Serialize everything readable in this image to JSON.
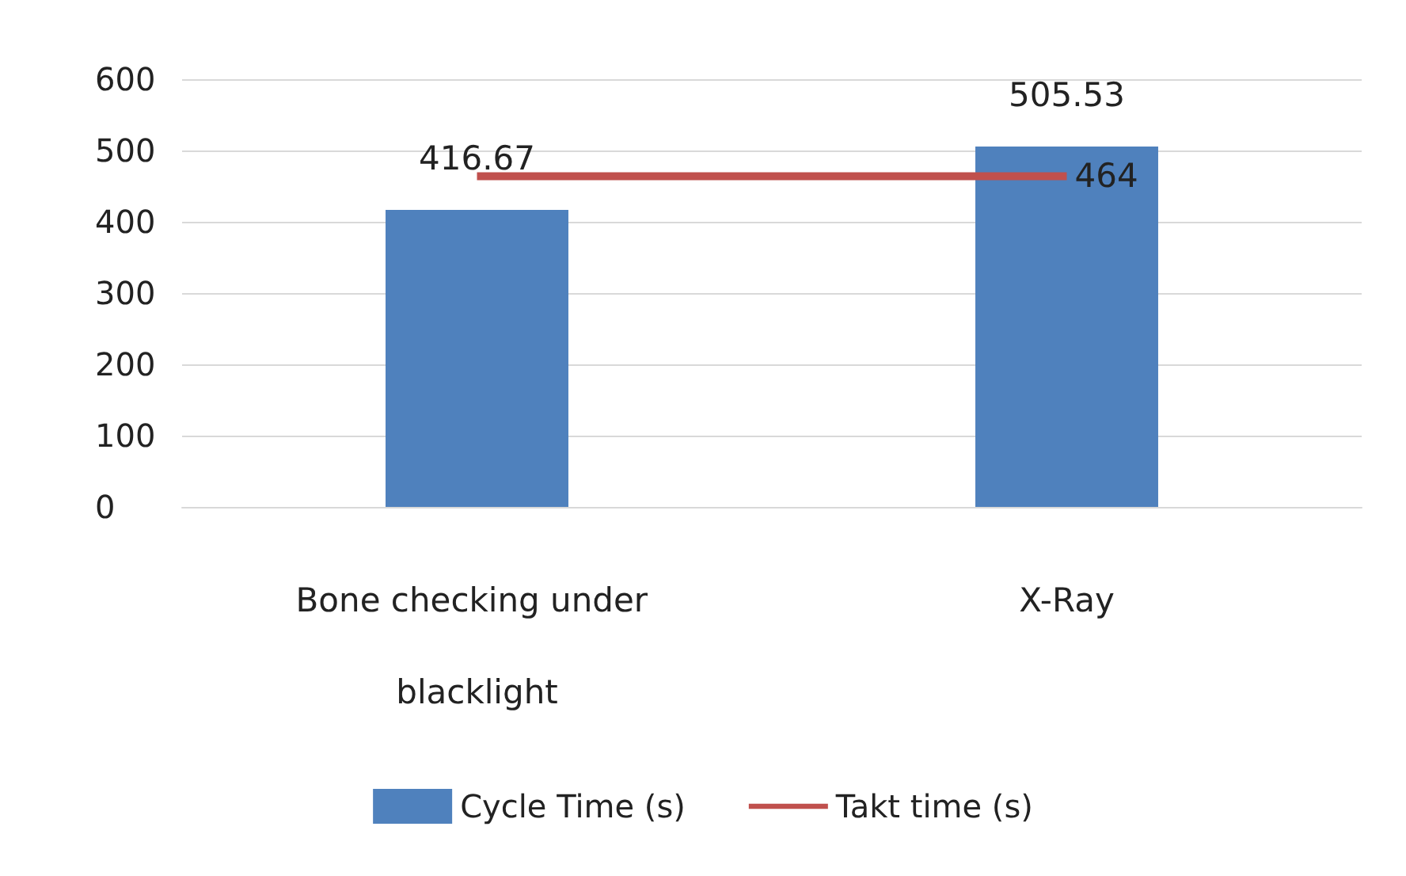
{
  "chart_data": {
    "type": "bar",
    "categories": [
      "Bone checking under blacklight",
      "X-Ray"
    ],
    "series": [
      {
        "name": "Cycle Time (s)",
        "color": "#4f81bd",
        "values": [
          416.67,
          505.53
        ],
        "value_labels": [
          "416.67",
          "505.53"
        ]
      },
      {
        "name": "Takt time (s)",
        "type": "line",
        "color": "#c0504d",
        "values": [
          464,
          464
        ],
        "value_labels": [
          null,
          "464"
        ]
      }
    ],
    "ylim": [
      0,
      600
    ],
    "yticks": [
      0,
      100,
      200,
      300,
      400,
      500,
      600
    ],
    "grid": "y",
    "legend": "bottom",
    "marker": "none",
    "line_style": "solid"
  }
}
